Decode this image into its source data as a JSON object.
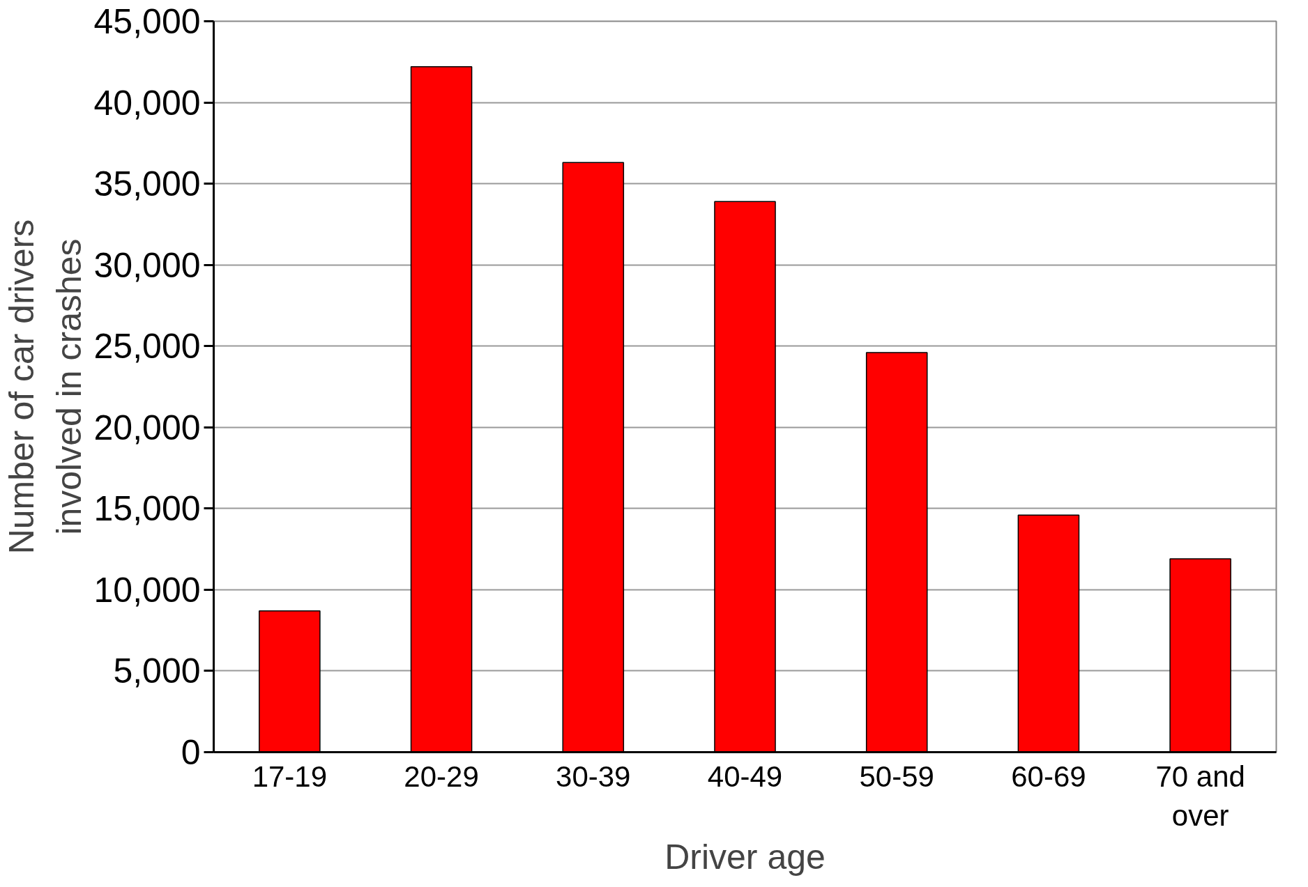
{
  "chart_data": {
    "type": "bar",
    "xlabel": "Driver age",
    "ylabel": "Number of car drivers involved in crashes",
    "categories": [
      "17-19",
      "20-29",
      "30-39",
      "40-49",
      "50-59",
      "60-69",
      "70 and over"
    ],
    "values": [
      8700,
      42200,
      36300,
      33900,
      24600,
      14600,
      11900
    ],
    "color": "#ff0000",
    "ylim": [
      0,
      45000
    ],
    "yticks": [
      {
        "value": 0,
        "label": "0"
      },
      {
        "value": 5000,
        "label": "5,000"
      },
      {
        "value": 10000,
        "label": "10,000"
      },
      {
        "value": 15000,
        "label": "15,000"
      },
      {
        "value": 20000,
        "label": "20,000"
      },
      {
        "value": 25000,
        "label": "25,000"
      },
      {
        "value": 30000,
        "label": "30,000"
      },
      {
        "value": 35000,
        "label": "35,000"
      },
      {
        "value": 40000,
        "label": "40,000"
      },
      {
        "value": 45000,
        "label": "45,000"
      }
    ],
    "grid": "y"
  }
}
